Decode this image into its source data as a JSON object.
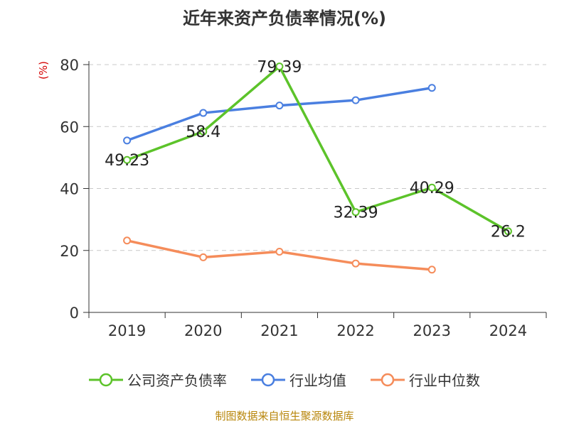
{
  "chart_data": {
    "type": "line",
    "title": "近年来资产负债率情况(%)",
    "unit_label": "(%)",
    "categories": [
      "2019",
      "2020",
      "2021",
      "2022",
      "2023",
      "2024"
    ],
    "ylim": [
      0,
      80
    ],
    "yticks": [
      0,
      20,
      40,
      60,
      80
    ],
    "grid": true,
    "legend_position": "bottom",
    "series": [
      {
        "name": "公司资产负债率",
        "color": "#5cc32a",
        "values": [
          49.23,
          58.4,
          79.39,
          32.39,
          40.29,
          26.2
        ],
        "labels": [
          "49.23",
          "58.4",
          "79.39",
          "32.39",
          "40.29",
          "26.2"
        ]
      },
      {
        "name": "行业均值",
        "color": "#4a7fe0",
        "values": [
          55.5,
          64.4,
          66.8,
          68.5,
          72.5,
          null
        ]
      },
      {
        "name": "行业中位数",
        "color": "#f58c5a",
        "values": [
          23.2,
          17.8,
          19.6,
          15.8,
          13.8,
          null
        ]
      }
    ]
  },
  "source": "制图数据来自恒生聚源数据库"
}
